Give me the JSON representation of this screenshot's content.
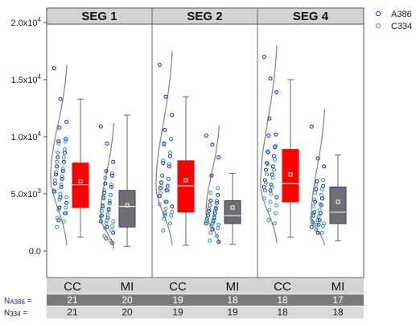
{
  "chart_data": {
    "type": "box",
    "ylim": [
      -2500,
      20000
    ],
    "y_ticks": [
      {
        "value": 0,
        "label": "0.0"
      },
      {
        "value": 5000,
        "label": "5.0x10",
        "exp": "3"
      },
      {
        "value": 10000,
        "label": "1.0x10",
        "exp": "4"
      },
      {
        "value": 15000,
        "label": "1.5x10",
        "exp": "4"
      },
      {
        "value": 20000,
        "label": "2.0x10",
        "exp": "4"
      }
    ],
    "panels": [
      {
        "label": "SEG 1",
        "groups": [
          "CC",
          "MI"
        ]
      },
      {
        "label": "SEG 2",
        "groups": [
          "CC",
          "MI"
        ]
      },
      {
        "label": "SEG 4",
        "groups": [
          "CC",
          "MI"
        ]
      }
    ],
    "legend": [
      {
        "name": "A386",
        "color": "#1a1aff"
      },
      {
        "name": "C334",
        "color": "#2a9d8f"
      }
    ],
    "colors": {
      "CC": "#ff0000",
      "MI": "#6f6f6f",
      "A386": "#1a1aff",
      "C334": "#2a9d8f"
    },
    "boxes": [
      {
        "panel": "SEG 1",
        "group": "CC",
        "whisker_low": 1200,
        "q1": 3800,
        "median": 5800,
        "mean": 6100,
        "q3": 7700,
        "whisker_high": 13300,
        "density_range": [
          500,
          16300
        ],
        "density_peak": 6500
      },
      {
        "panel": "SEG 1",
        "group": "MI",
        "whisker_low": 400,
        "q1": 2100,
        "median": 3900,
        "mean": 4000,
        "q3": 5300,
        "whisker_high": 11900,
        "density_range": [
          200,
          11200
        ],
        "density_peak": 3000
      },
      {
        "panel": "SEG 2",
        "group": "CC",
        "whisker_low": 500,
        "q1": 3400,
        "median": 5700,
        "mean": 6200,
        "q3": 7900,
        "whisker_high": 13500,
        "density_range": [
          500,
          17500
        ],
        "density_peak": 5700
      },
      {
        "panel": "SEG 2",
        "group": "MI",
        "whisker_low": 600,
        "q1": 2400,
        "median": 3100,
        "mean": 3800,
        "q3": 4400,
        "whisker_high": 6800,
        "density_range": [
          700,
          11000
        ],
        "density_peak": 3300
      },
      {
        "panel": "SEG 4",
        "group": "CC",
        "whisker_low": 1200,
        "q1": 4300,
        "median": 5900,
        "mean": 6700,
        "q3": 8900,
        "whisker_high": 15000,
        "density_range": [
          700,
          18000
        ],
        "density_peak": 5800
      },
      {
        "panel": "SEG 4",
        "group": "MI",
        "whisker_low": 900,
        "q1": 2400,
        "median": 3400,
        "mean": 4300,
        "q3": 5600,
        "whisker_high": 8400,
        "density_range": [
          500,
          12400
        ],
        "density_peak": 3000
      }
    ],
    "points": [
      {
        "box": 0,
        "A386": [
          16000,
          13300,
          11300,
          10800,
          9800,
          9600,
          8600,
          8200,
          7800,
          7400,
          7000,
          6700,
          6300,
          5900,
          5600,
          5200,
          4700,
          4200,
          3800,
          3300,
          2700
        ],
        "C334": [
          9600,
          9400,
          8900,
          8600,
          8200,
          7800,
          7200,
          6900,
          6500,
          6200,
          5800,
          5300,
          5000,
          4700,
          4500,
          3800,
          3600,
          3300,
          2900,
          2600,
          2100
        ]
      },
      {
        "box": 1,
        "A386": [
          10900,
          9400,
          7800,
          7000,
          6600,
          5900,
          5600,
          5100,
          4900,
          4700,
          4200,
          3900,
          3600,
          3100,
          2900,
          2600,
          2100,
          1600,
          1100,
          700
        ],
        "C334": [
          6800,
          6400,
          5800,
          5300,
          4900,
          4600,
          4400,
          4000,
          3700,
          3500,
          3200,
          3000,
          2700,
          2600,
          2400,
          2200,
          2000,
          1800,
          1300,
          900
        ]
      },
      {
        "box": 2,
        "A386": [
          16300,
          13500,
          11900,
          10600,
          9800,
          9400,
          8300,
          7700,
          7400,
          6600,
          6300,
          6000,
          5700,
          5500,
          5300,
          4800,
          4300,
          3900,
          3300
        ],
        "C334": [
          9800,
          9300,
          8600,
          7900,
          7600,
          6600,
          6300,
          5700,
          5300,
          5100,
          4300,
          4100,
          3700,
          3400,
          3100,
          3100,
          2800,
          2400,
          1800
        ]
      },
      {
        "box": 3,
        "A386": [
          10100,
          9300,
          8200,
          6600,
          4900,
          4400,
          4200,
          4000,
          3700,
          3500,
          3300,
          3100,
          2900,
          2800,
          2600,
          2400,
          1900,
          800
        ],
        "C334": [
          5500,
          5100,
          4400,
          4000,
          3800,
          3700,
          3500,
          3300,
          3000,
          2800,
          2700,
          2600,
          2400,
          2300,
          2200,
          2000,
          1600,
          1300,
          900
        ]
      },
      {
        "box": 4,
        "A386": [
          17000,
          15100,
          13900,
          11600,
          10200,
          10100,
          9100,
          8700,
          8300,
          7700,
          7400,
          7100,
          6700,
          6200,
          5800,
          5600,
          5300,
          4700
        ],
        "C334": [
          9200,
          8600,
          8000,
          7600,
          7100,
          6700,
          6400,
          6000,
          5600,
          5300,
          5000,
          4600,
          4300,
          4000,
          3600,
          3300,
          2700,
          2400
        ]
      },
      {
        "box": 5,
        "A386": [
          10900,
          8100,
          7400,
          6100,
          5700,
          5400,
          4600,
          4300,
          4000,
          3400,
          3300,
          3100,
          2700,
          2500,
          2300,
          2100,
          1600
        ],
        "C334": [
          6200,
          5800,
          5400,
          5100,
          4900,
          4500,
          4100,
          3900,
          3600,
          3300,
          3000,
          2900,
          2700,
          2400,
          2300,
          2200,
          1900,
          1600
        ]
      }
    ]
  },
  "footer": {
    "groups": [
      "CC",
      "MI",
      "CC",
      "MI",
      "CC",
      "MI"
    ],
    "row_a": {
      "label": "N",
      "sub": "A386",
      "suffix": " =",
      "values": [
        "21",
        "20",
        "19",
        "18",
        "18",
        "17"
      ]
    },
    "row_b": {
      "label": "N",
      "sub": "334",
      "suffix": " =",
      "values": [
        "21",
        "20",
        "19",
        "19",
        "18",
        "18"
      ]
    }
  }
}
